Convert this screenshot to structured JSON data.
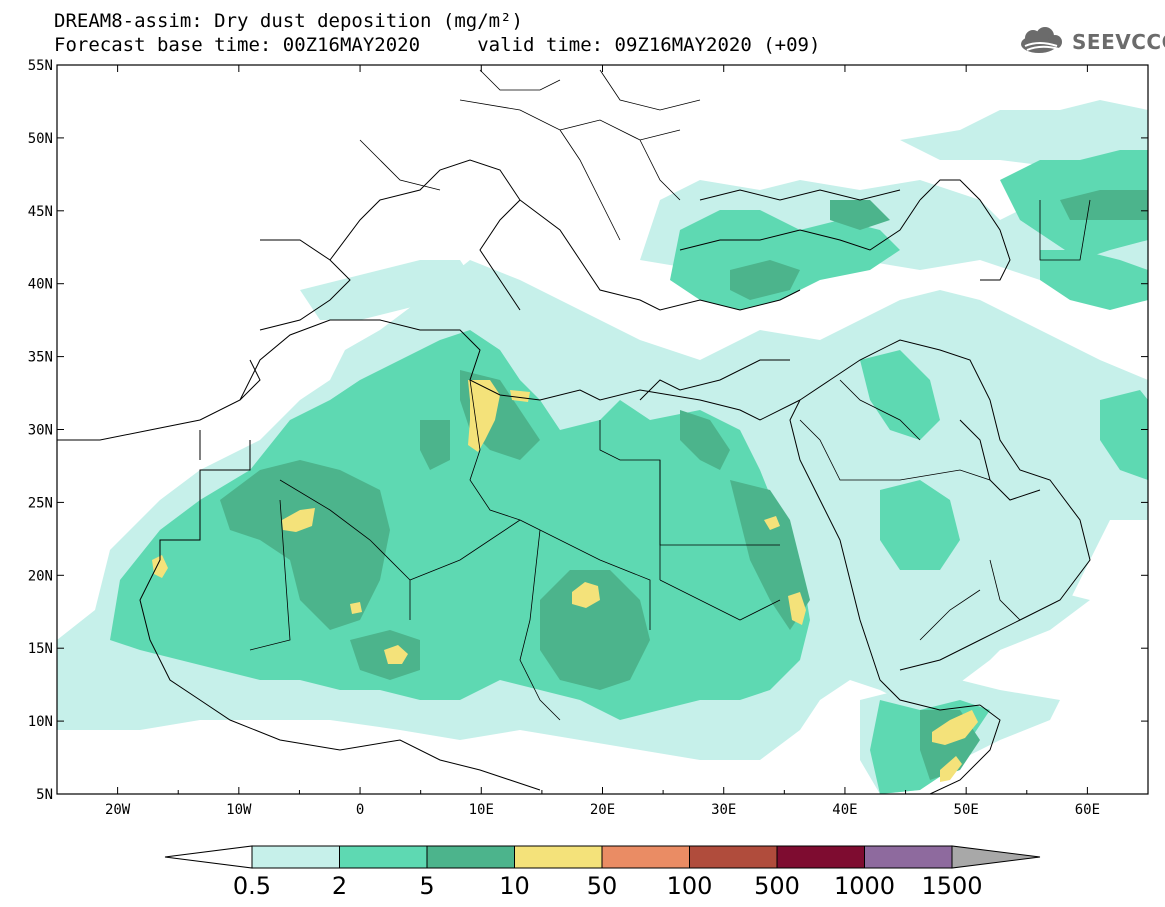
{
  "header": {
    "title_line1": "DREAM8-assim: Dry dust deposition (mg/m²)",
    "title_line2": "Forecast base time: 00Z16MAY2020     valid time: 09Z16MAY2020 (+09)",
    "logo_text": "SEEVCCC",
    "logo_icon": "cloud-logo-icon"
  },
  "map": {
    "lon_range": [
      -25,
      65
    ],
    "lat_range": [
      5,
      55
    ],
    "lat_ticks": [
      "55N",
      "50N",
      "45N",
      "40N",
      "35N",
      "30N",
      "25N",
      "20N",
      "15N",
      "10N",
      "5N"
    ],
    "lon_ticks": [
      "20W",
      "10W",
      "0",
      "10E",
      "20E",
      "30E",
      "40E",
      "50E",
      "60E"
    ]
  },
  "colorbar": {
    "labels": [
      "0.5",
      "2",
      "5",
      "10",
      "50",
      "100",
      "500",
      "1000",
      "1500"
    ],
    "colors": [
      "#c6f0ea",
      "#5ed9b2",
      "#4cb48c",
      "#f4e27a",
      "#ea8c64",
      "#b04c3c",
      "#7e0c30",
      "#8e6a9e"
    ],
    "under_color": "#ffffff",
    "over_color": "#a8a8a8"
  },
  "chart_data": {
    "type": "heatmap",
    "title": "DREAM8-assim: Dry dust deposition (mg/m²)",
    "variable_unit": "mg/m²",
    "levels": [
      0.5,
      2,
      5,
      10,
      50,
      100,
      500,
      1000,
      1500
    ],
    "xlabel": "",
    "ylabel": "",
    "xlim": [
      -25,
      65
    ],
    "ylim": [
      5,
      55
    ],
    "regions": [
      {
        "lon": 10,
        "lat": 30,
        "level_from": 10,
        "level_to": 50
      },
      {
        "lon": 20,
        "lat": 17,
        "level_from": 10,
        "level_to": 50
      },
      {
        "lon": -3,
        "lat": 24,
        "level_from": 10,
        "level_to": 50
      },
      {
        "lon": 48,
        "lat": 9,
        "level_from": 10,
        "level_to": 50
      },
      {
        "lon": 36,
        "lat": 16,
        "level_from": 10,
        "level_to": 50
      },
      {
        "lon": 3,
        "lat": 15,
        "level_from": 10,
        "level_to": 50
      },
      {
        "lon": -17,
        "lat": 20,
        "level_from": 10,
        "level_to": 50
      }
    ]
  }
}
